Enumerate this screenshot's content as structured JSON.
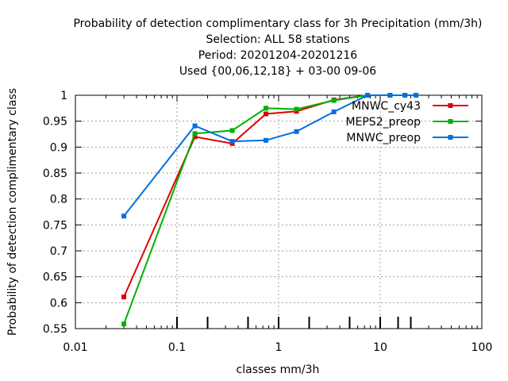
{
  "chart_data": {
    "type": "line",
    "title_lines": [
      "Probability of detection complimentary class  for 3h Precipitation (mm/3h)",
      "Selection: ALL     58 stations",
      "Period: 20201204-20201216",
      "Used {00,06,12,18} + 03-00 09-06"
    ],
    "xlabel": "classes mm/3h",
    "ylabel": "Probability of detection complimentary class",
    "x_scale": "log",
    "xlim": [
      0.01,
      100
    ],
    "ylim": [
      0.55,
      1.0
    ],
    "x_ticks": [
      0.01,
      0.1,
      1,
      10,
      100
    ],
    "x_tick_labels": [
      "0.01",
      "0.1",
      "1",
      "10",
      "100"
    ],
    "y_ticks": [
      0.55,
      0.6,
      0.65,
      0.7,
      0.75,
      0.8,
      0.85,
      0.9,
      0.95,
      1.0
    ],
    "y_tick_labels": [
      "0.55",
      "0.6",
      "0.65",
      "0.7",
      "0.75",
      "0.8",
      "0.85",
      "0.9",
      "0.95",
      "1"
    ],
    "grid": true,
    "legend_position": "top-right",
    "class_markers_x": [
      0.1,
      0.2,
      0.5,
      1,
      2,
      5,
      10,
      15,
      20
    ],
    "series": [
      {
        "name": "MNWC_cy43",
        "color": "#e00000",
        "x": [
          0.03,
          0.15,
          0.35,
          0.75,
          1.5,
          3.5,
          7.5,
          12.5,
          17.5,
          22.5
        ],
        "y": [
          0.611,
          0.92,
          0.907,
          0.964,
          0.969,
          0.991,
          1.0,
          1.0,
          1.0,
          1.0
        ]
      },
      {
        "name": "MEPS2_preop",
        "color": "#00b000",
        "x": [
          0.03,
          0.15,
          0.35,
          0.75,
          1.5,
          3.5,
          7.5,
          12.5,
          17.5,
          22.5
        ],
        "y": [
          0.559,
          0.926,
          0.932,
          0.975,
          0.973,
          0.99,
          1.0,
          1.0,
          1.0,
          1.0
        ]
      },
      {
        "name": "MNWC_preop",
        "color": "#0070e0",
        "x": [
          0.03,
          0.15,
          0.35,
          0.75,
          1.5,
          3.5,
          7.5,
          12.5,
          17.5,
          22.5
        ],
        "y": [
          0.767,
          0.941,
          0.911,
          0.913,
          0.93,
          0.968,
          1.0,
          1.0,
          1.0,
          1.0
        ]
      }
    ]
  }
}
